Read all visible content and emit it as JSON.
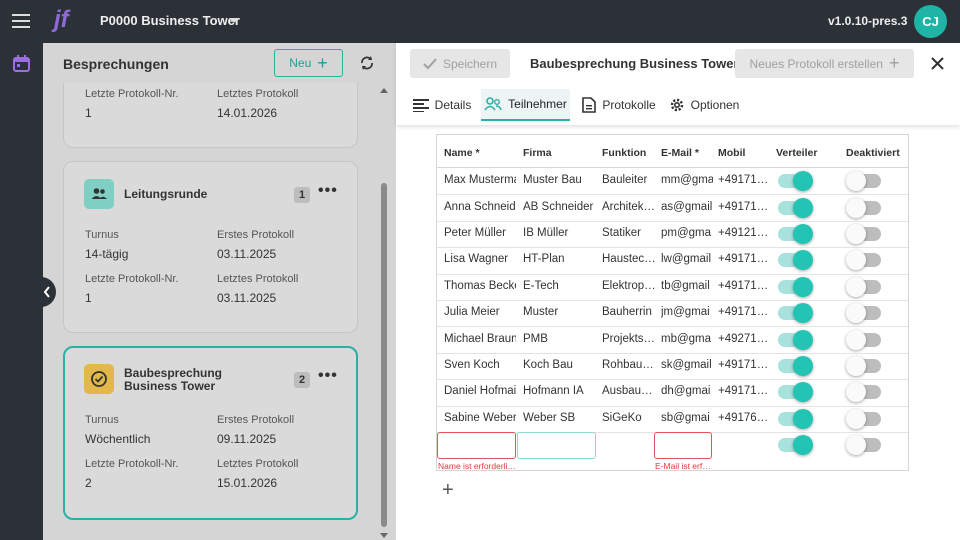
{
  "topbar": {
    "logo": "jf",
    "project": "P0000 Business Tower",
    "version": "v1.0.10-pres.3",
    "avatar": "CJ"
  },
  "sidebar": {
    "title": "Besprechungen",
    "new_button": "Neu",
    "meetings": [
      {
        "fields": [
          {
            "label": "Letzte Protokoll-Nr.",
            "value": "1"
          },
          {
            "label": "Letztes Protokoll",
            "value": "14.01.2026"
          }
        ]
      },
      {
        "name": "Leitungsrunde",
        "count": "1",
        "selected": false,
        "icon": "group",
        "fields": [
          {
            "label": "Turnus",
            "value": "14-tägig"
          },
          {
            "label": "Erstes Protokoll",
            "value": "03.11.2025"
          },
          {
            "label": "Letzte Protokoll-Nr.",
            "value": "1"
          },
          {
            "label": "Letztes Protokoll",
            "value": "03.11.2025"
          }
        ]
      },
      {
        "name": "Baubesprechung Business Tower",
        "count": "2",
        "selected": true,
        "icon": "check",
        "fields": [
          {
            "label": "Turnus",
            "value": "Wöchentlich"
          },
          {
            "label": "Erstes Protokoll",
            "value": "09.11.2025"
          },
          {
            "label": "Letzte Protokoll-Nr.",
            "value": "2"
          },
          {
            "label": "Letztes Protokoll",
            "value": "15.01.2026"
          }
        ]
      }
    ]
  },
  "detail": {
    "save": "Speichern",
    "title": "Baubesprechung Business Tower",
    "new_protocol": "Neues Protokoll erstellen",
    "tabs": [
      "Details",
      "Teilnehmer",
      "Protokolle",
      "Optionen"
    ],
    "active_tab": 1,
    "table": {
      "columns": [
        "Name *",
        "Firma",
        "Funktion",
        "E-Mail *",
        "Mobil",
        "Verteiler",
        "Deaktiviert"
      ],
      "rows": [
        {
          "name": "Max Musterma",
          "firma": "Muster Bau",
          "funktion": "Bauleiter",
          "email": "mm@gma",
          "mobil": "+49171…",
          "verteiler": true,
          "deaktiviert": false
        },
        {
          "name": "Anna Schneide",
          "firma": "AB Schneider",
          "funktion": "Architek…",
          "email": "as@gmail",
          "mobil": "+49171…",
          "verteiler": true,
          "deaktiviert": false
        },
        {
          "name": "Peter Müller",
          "firma": "IB Müller",
          "funktion": "Statiker",
          "email": "pm@gma",
          "mobil": "+49121…",
          "verteiler": true,
          "deaktiviert": false
        },
        {
          "name": "Lisa Wagner",
          "firma": "HT-Plan",
          "funktion": "Haustec…",
          "email": "lw@gmail",
          "mobil": "+49171…",
          "verteiler": true,
          "deaktiviert": false
        },
        {
          "name": "Thomas Becke",
          "firma": "E-Tech",
          "funktion": "Elektrop…",
          "email": "tb@gmail",
          "mobil": "+49171…",
          "verteiler": true,
          "deaktiviert": false
        },
        {
          "name": "Julia Meier",
          "firma": "Muster",
          "funktion": "Bauherrin",
          "email": "jm@gmai",
          "mobil": "+49171…",
          "verteiler": true,
          "deaktiviert": false
        },
        {
          "name": "Michael Braun",
          "firma": "PMB",
          "funktion": "Projekts…",
          "email": "mb@gma",
          "mobil": "+49271…",
          "verteiler": true,
          "deaktiviert": false
        },
        {
          "name": "Sven Koch",
          "firma": "Koch Bau",
          "funktion": "Rohbau…",
          "email": "sk@gmail",
          "mobil": "+49171…",
          "verteiler": true,
          "deaktiviert": false
        },
        {
          "name": "Daniel Hofmai",
          "firma": "Hofmann IA",
          "funktion": "Ausbau…",
          "email": "dh@gmai",
          "mobil": "+49171…",
          "verteiler": true,
          "deaktiviert": false
        },
        {
          "name": "Sabine Weber",
          "firma": "Weber SB",
          "funktion": "SiGeKo",
          "email": "sb@gmai",
          "mobil": "+49176…",
          "verteiler": true,
          "deaktiviert": false
        }
      ],
      "new_row": {
        "name_error": "Name ist erforderli…",
        "email_error": "E-Mail ist erf…",
        "verteiler": true,
        "deaktiviert": false
      }
    }
  }
}
